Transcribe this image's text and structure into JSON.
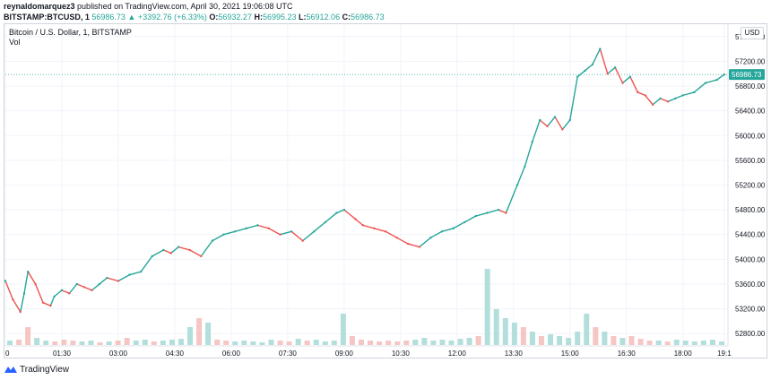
{
  "header": {
    "author": "reynaldomarquez3",
    "published_text": "published on TradingView.com, April 30, 2021 19:06:08 UTC",
    "symbol": "BITSTAMP:BTCUSD, 1",
    "last": "56986.73",
    "change": "▲ +3392.76 (+6.33%)",
    "o_label": "O:",
    "o_value": "56932.27",
    "h_label": "H:",
    "h_value": "56995.23",
    "l_label": "L:",
    "l_value": "56912.06",
    "c_label": "C:",
    "c_value": "56986.73"
  },
  "legend": {
    "title": "Bitcoin / U.S. Dollar, 1, BITSTAMP",
    "volume_label": "Vol"
  },
  "currency_button": "USD",
  "footer": {
    "brand": "TradingView"
  },
  "colors": {
    "up": "#26a69a",
    "down": "#ef5350",
    "price_line": "#26a69a",
    "vol_up": "#b2dfdb",
    "vol_down": "#f5c6c4"
  },
  "chart_data": {
    "type": "line",
    "title": "Bitcoin / U.S. Dollar, 1, BITSTAMP",
    "xlabel": "",
    "ylabel": "",
    "ylim": [
      52600,
      57800
    ],
    "grid": true,
    "y_ticks": [
      57600,
      57200,
      56800,
      56400,
      56000,
      55600,
      55200,
      54800,
      54400,
      54000,
      53600,
      53200,
      52800
    ],
    "y_tick_labels": [
      "57600.00",
      "57200.00",
      "56800.00",
      "56400.00",
      "56000.00",
      "55600.00",
      "55200.00",
      "54800.00",
      "54400.00",
      "54000.00",
      "53600.00",
      "53200.00",
      "52800.00"
    ],
    "x_ticks": [
      "0",
      "01:30",
      "03:00",
      "04:30",
      "06:00",
      "07:30",
      "09:00",
      "10:30",
      "12:00",
      "13:30",
      "15:00",
      "16:30",
      "18:00",
      "19:1"
    ],
    "x_tick_hours": [
      0,
      1.5,
      3,
      4.5,
      6,
      7.5,
      9,
      10.5,
      12,
      13.5,
      15,
      16.5,
      18,
      19.1
    ],
    "current_price": 56986.73,
    "current_price_label": "56986.73",
    "series": [
      {
        "name": "",
        "x": [
          0,
          0.2,
          0.4,
          0.5,
          0.6,
          0.8,
          1.0,
          1.2,
          1.3,
          1.5,
          1.7,
          1.9,
          2.1,
          2.3,
          2.5,
          2.7,
          3.0,
          3.3,
          3.6,
          3.9,
          4.2,
          4.4,
          4.6,
          4.9,
          5.2,
          5.5,
          5.8,
          6.1,
          6.4,
          6.7,
          7.0,
          7.3,
          7.6,
          7.9,
          8.2,
          8.5,
          8.8,
          9.0,
          9.3,
          9.5,
          9.8,
          10.1,
          10.4,
          10.7,
          11.0,
          11.3,
          11.6,
          11.9,
          12.2,
          12.5,
          12.8,
          13.1,
          13.3,
          13.6,
          13.8,
          14.0,
          14.2,
          14.4,
          14.6,
          14.8,
          15.0,
          15.2,
          15.4,
          15.6,
          15.8,
          16.0,
          16.2,
          16.4,
          16.6,
          16.8,
          17.0,
          17.2,
          17.4,
          17.6,
          17.8,
          18.0,
          18.3,
          18.6,
          18.9,
          19.1
        ],
        "values": [
          53650,
          53350,
          53150,
          53450,
          53800,
          53600,
          53300,
          53250,
          53400,
          53500,
          53450,
          53600,
          53550,
          53500,
          53600,
          53700,
          53650,
          53750,
          53800,
          54050,
          54150,
          54100,
          54200,
          54150,
          54050,
          54300,
          54400,
          54450,
          54500,
          54550,
          54500,
          54400,
          54450,
          54300,
          54450,
          54600,
          54750,
          54800,
          54650,
          54550,
          54500,
          54450,
          54350,
          54250,
          54200,
          54350,
          54450,
          54500,
          54600,
          54700,
          54750,
          54800,
          54750,
          55200,
          55500,
          55900,
          56250,
          56150,
          56300,
          56100,
          56250,
          56950,
          57050,
          57150,
          57400,
          57000,
          57100,
          56850,
          56950,
          56700,
          56650,
          56500,
          56600,
          56550,
          56600,
          56650,
          56700,
          56850,
          56900,
          56987
        ]
      }
    ],
    "volume": [
      0.05,
      0.06,
      0.2,
      0.08,
      0.05,
      0.04,
      0.06,
      0.05,
      0.04,
      0.05,
      0.03,
      0.04,
      0.05,
      0.08,
      0.05,
      0.06,
      0.04,
      0.05,
      0.06,
      0.07,
      0.2,
      0.3,
      0.25,
      0.06,
      0.05,
      0.04,
      0.05,
      0.04,
      0.03,
      0.06,
      0.05,
      0.04,
      0.07,
      0.05,
      0.06,
      0.04,
      0.05,
      0.35,
      0.1,
      0.06,
      0.05,
      0.04,
      0.05,
      0.04,
      0.05,
      0.06,
      0.08,
      0.05,
      0.06,
      0.05,
      0.07,
      0.08,
      0.1,
      0.85,
      0.4,
      0.3,
      0.25,
      0.2,
      0.15,
      0.1,
      0.12,
      0.1,
      0.08,
      0.15,
      0.35,
      0.2,
      0.15,
      0.1,
      0.08,
      0.1,
      0.07,
      0.05,
      0.05,
      0.04,
      0.06,
      0.05,
      0.04,
      0.05,
      0.06,
      0.04
    ]
  }
}
